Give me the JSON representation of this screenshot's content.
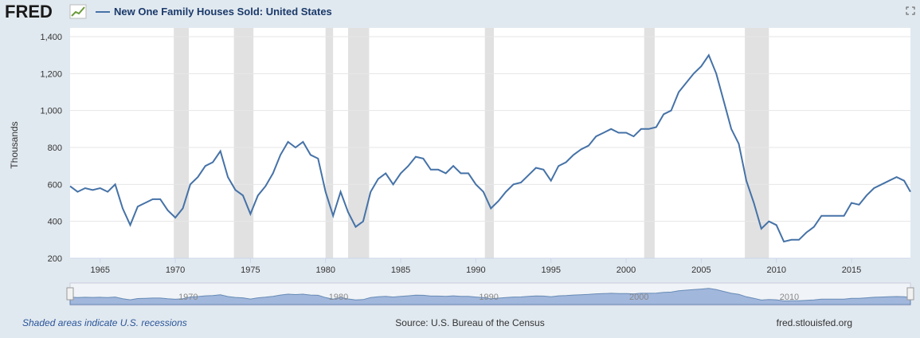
{
  "chart_data": {
    "type": "line",
    "logo": "FRED",
    "title": "New One Family Houses Sold: United States",
    "y_label": "Thousands",
    "note": "Shaded areas indicate U.S. recessions",
    "source": "Source: U.S. Bureau of the Census",
    "site": "fred.stlouisfed.org",
    "color": "#4572a7",
    "grid": true,
    "xlim": [
      1963,
      2018.92
    ],
    "ylim": [
      200,
      1400
    ],
    "yticks": [
      200,
      400,
      600,
      800,
      {
        "value": 1000,
        "label": "1,000"
      },
      {
        "value": 1200,
        "label": "1,200"
      },
      {
        "value": 1400,
        "label": "1,400"
      }
    ],
    "xticks": [
      1965,
      1970,
      1975,
      1980,
      1985,
      1990,
      1995,
      2000,
      2005,
      2010,
      2015
    ],
    "navigator_ticks": [
      1970,
      1980,
      1990,
      2000,
      2010
    ],
    "recessions": [
      [
        1969.9,
        1970.9
      ],
      [
        1973.9,
        1975.2
      ],
      [
        1980.0,
        1980.5
      ],
      [
        1981.5,
        1982.9
      ],
      [
        1990.6,
        1991.2
      ],
      [
        2001.2,
        2001.9
      ],
      [
        2007.9,
        2009.5
      ]
    ],
    "x": [
      1963.0,
      1963.5,
      1964.0,
      1964.5,
      1965.0,
      1965.5,
      1966.0,
      1966.5,
      1967.0,
      1967.5,
      1968.0,
      1968.5,
      1969.0,
      1969.5,
      1970.0,
      1970.5,
      1971.0,
      1971.5,
      1972.0,
      1972.5,
      1973.0,
      1973.5,
      1974.0,
      1974.5,
      1975.0,
      1975.5,
      1976.0,
      1976.5,
      1977.0,
      1977.5,
      1978.0,
      1978.5,
      1979.0,
      1979.5,
      1980.0,
      1980.5,
      1981.0,
      1981.5,
      1982.0,
      1982.5,
      1983.0,
      1983.5,
      1984.0,
      1984.5,
      1985.0,
      1985.5,
      1986.0,
      1986.5,
      1987.0,
      1987.5,
      1988.0,
      1988.5,
      1989.0,
      1989.5,
      1990.0,
      1990.5,
      1991.0,
      1991.5,
      1992.0,
      1992.5,
      1993.0,
      1993.5,
      1994.0,
      1994.5,
      1995.0,
      1995.5,
      1996.0,
      1996.5,
      1997.0,
      1997.5,
      1998.0,
      1998.5,
      1999.0,
      1999.5,
      2000.0,
      2000.5,
      2001.0,
      2001.5,
      2002.0,
      2002.5,
      2003.0,
      2003.5,
      2004.0,
      2004.5,
      2005.0,
      2005.5,
      2006.0,
      2006.5,
      2007.0,
      2007.5,
      2008.0,
      2008.5,
      2009.0,
      2009.5,
      2010.0,
      2010.5,
      2011.0,
      2011.5,
      2012.0,
      2012.5,
      2013.0,
      2013.5,
      2014.0,
      2014.5,
      2015.0,
      2015.5,
      2016.0,
      2016.5,
      2017.0,
      2017.5,
      2018.0,
      2018.5,
      2018.92
    ],
    "series": [
      {
        "name": "New One Family Houses Sold: United States",
        "color": "#4572a7",
        "values": [
          590,
          560,
          580,
          570,
          580,
          560,
          600,
          470,
          380,
          480,
          500,
          520,
          520,
          460,
          420,
          470,
          600,
          640,
          700,
          720,
          780,
          640,
          570,
          540,
          440,
          540,
          590,
          660,
          760,
          830,
          800,
          830,
          760,
          740,
          560,
          430,
          560,
          450,
          370,
          400,
          560,
          630,
          660,
          600,
          660,
          700,
          750,
          740,
          680,
          680,
          660,
          700,
          660,
          660,
          600,
          560,
          470,
          510,
          560,
          600,
          610,
          650,
          690,
          680,
          620,
          700,
          720,
          760,
          790,
          810,
          860,
          880,
          900,
          880,
          880,
          860,
          900,
          900,
          910,
          980,
          1000,
          1100,
          1150,
          1200,
          1240,
          1300,
          1200,
          1050,
          900,
          820,
          620,
          500,
          360,
          400,
          380,
          290,
          300,
          300,
          340,
          370,
          430,
          430,
          430,
          430,
          500,
          490,
          540,
          580,
          600,
          620,
          640,
          620,
          560
        ]
      }
    ]
  }
}
